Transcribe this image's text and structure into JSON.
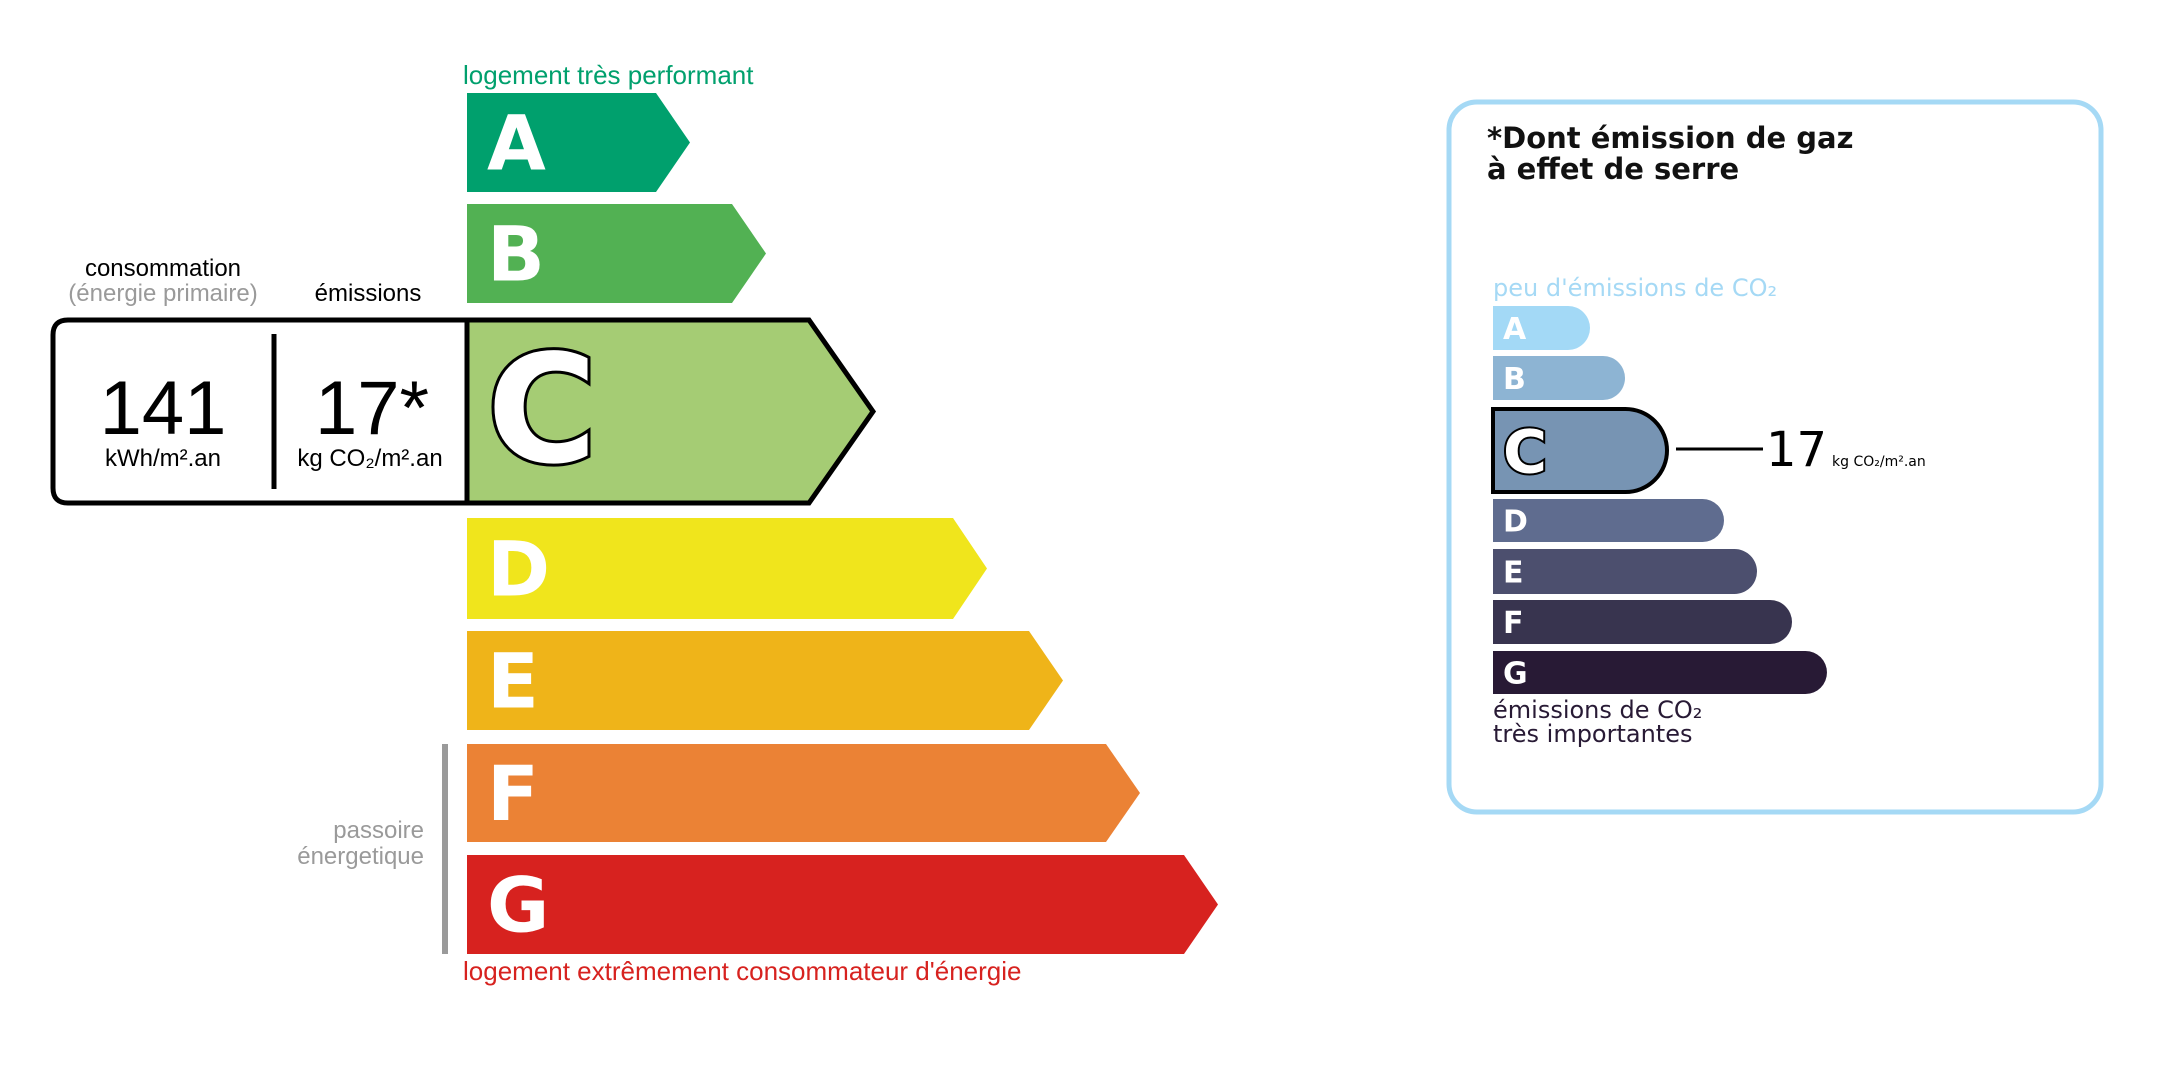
{
  "energy": {
    "top_label": "logement très performant",
    "bottom_label": "logement extrêmement consommateur d'énergie",
    "passoire_line1": "passoire",
    "passoire_line2": "énergetique",
    "consumption_header": "consommation",
    "consumption_subheader": "(énergie primaire)",
    "emissions_header": "émissions",
    "consumption_value": "141",
    "consumption_unit": "kWh/m².an",
    "emissions_value": "17*",
    "emissions_unit": "kg CO₂/m².an",
    "current_class": "C",
    "classes": [
      {
        "letter": "A",
        "color": "#00a06d"
      },
      {
        "letter": "B",
        "color": "#52b153"
      },
      {
        "letter": "C",
        "color": "#a5cc74"
      },
      {
        "letter": "D",
        "color": "#f0e51c"
      },
      {
        "letter": "E",
        "color": "#efb419"
      },
      {
        "letter": "F",
        "color": "#eb8235"
      },
      {
        "letter": "G",
        "color": "#d7221f"
      }
    ],
    "top_label_color": "#00a06d",
    "bottom_label_color": "#d7221f"
  },
  "ges": {
    "title_line1": "*Dont émission de gaz",
    "title_line2": "à effet de serre",
    "top_label": "peu d'émissions de CO₂",
    "bottom_line1": "émissions de CO₂",
    "bottom_line2": "très importantes",
    "value": "17",
    "unit": "kg CO₂/m².an",
    "current_class": "C",
    "border_color": "#a5d9f5",
    "classes": [
      {
        "letter": "A",
        "color": "#a3d9f6"
      },
      {
        "letter": "B",
        "color": "#8db4d3"
      },
      {
        "letter": "C",
        "color": "#7794b3"
      },
      {
        "letter": "D",
        "color": "#5f6c8f"
      },
      {
        "letter": "E",
        "color": "#4c4f6e"
      },
      {
        "letter": "F",
        "color": "#38344f"
      },
      {
        "letter": "G",
        "color": "#281a35"
      }
    ]
  }
}
